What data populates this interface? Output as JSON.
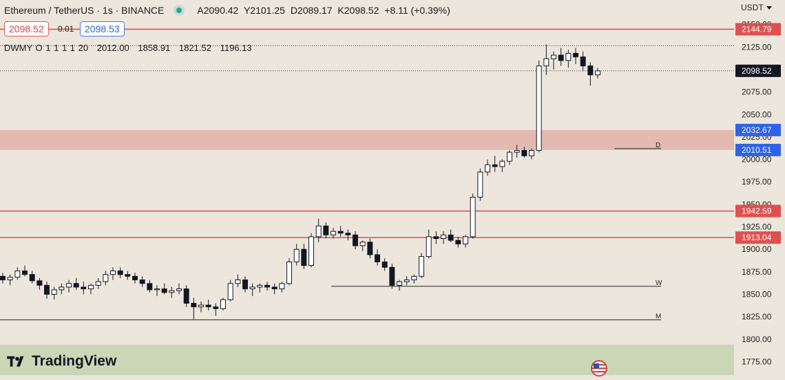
{
  "header": {
    "symbol": "Ethereum / TetherUS · 1s · BINANCE",
    "open": "A2090.42",
    "high": "Y2101.25",
    "low": "D2089.17",
    "close": "K2098.52",
    "change": "+8.11 (+0.39%)",
    "sell_price": "2098.52",
    "spread": "0.01",
    "buy_price": "2098.53",
    "currency": "USDT"
  },
  "indicator": {
    "name": "DWMY O 1 1 1 1 20",
    "v1": "2012.00",
    "v2": "1858.91",
    "v3": "1821.52",
    "v4": "1196.13"
  },
  "branding": {
    "logo_text": "TradingView"
  },
  "colors": {
    "up": "#ffffff",
    "down": "#131722",
    "hline": "#e05050",
    "supply_zone": "#e0b0aa",
    "demand_zone": "#c3d4b0",
    "background": "#ede6dc",
    "last_price": "#131722",
    "range_tag": "#2f62e8"
  },
  "chart_data": {
    "type": "candlestick",
    "yaxis": {
      "ticks": [
        "2150.00",
        "2125.00",
        "2100.00",
        "2075.00",
        "2050.00",
        "2025.00",
        "2000.00",
        "1975.00",
        "1950.00",
        "1925.00",
        "1900.00",
        "1875.00",
        "1850.00",
        "1825.00",
        "1800.00",
        "1775.00"
      ],
      "range": [
        1760,
        2162
      ]
    },
    "last_price": 2098.52,
    "price_labels": [
      {
        "value": 2144.79,
        "text": "2144.79",
        "kind": "red"
      },
      {
        "value": 2098.52,
        "text": "2098.52",
        "kind": "last"
      },
      {
        "value": 2032.67,
        "text": "2032.67",
        "kind": "blue"
      },
      {
        "value": 2010.51,
        "text": "2010.51",
        "kind": "blue"
      },
      {
        "value": 1942.59,
        "text": "1942.59",
        "kind": "red"
      },
      {
        "value": 1913.04,
        "text": "1913.04",
        "kind": "red"
      }
    ],
    "horizontal_lines": [
      2144.79,
      1942.59,
      1913.04
    ],
    "zones": [
      {
        "kind": "supply",
        "from": 2010.51,
        "to": 2032.67
      },
      {
        "kind": "demand",
        "from": 1760,
        "to": 1794
      }
    ],
    "level_lines": [
      {
        "label": "D",
        "value": 2012.0,
        "x_from": 0.705
      },
      {
        "label": "W",
        "value": 1858.91,
        "x_from": 0.38
      },
      {
        "label": "M",
        "value": 1821.52,
        "x_from": 0.0
      }
    ],
    "dotted_lines": [
      2126.5,
      2098.52
    ],
    "candles": [
      [
        1870,
        1874,
        1862,
        1866
      ],
      [
        1866,
        1872,
        1860,
        1869
      ],
      [
        1869,
        1880,
        1866,
        1876
      ],
      [
        1876,
        1882,
        1870,
        1872
      ],
      [
        1872,
        1876,
        1862,
        1865
      ],
      [
        1865,
        1868,
        1855,
        1860
      ],
      [
        1860,
        1864,
        1845,
        1850
      ],
      [
        1850,
        1858,
        1844,
        1855
      ],
      [
        1855,
        1862,
        1850,
        1858
      ],
      [
        1858,
        1866,
        1852,
        1862
      ],
      [
        1862,
        1868,
        1855,
        1858
      ],
      [
        1858,
        1864,
        1850,
        1856
      ],
      [
        1856,
        1862,
        1850,
        1860
      ],
      [
        1860,
        1868,
        1856,
        1864
      ],
      [
        1864,
        1876,
        1860,
        1872
      ],
      [
        1872,
        1880,
        1866,
        1876
      ],
      [
        1876,
        1880,
        1868,
        1872
      ],
      [
        1872,
        1876,
        1866,
        1870
      ],
      [
        1870,
        1874,
        1862,
        1866
      ],
      [
        1866,
        1870,
        1858,
        1862
      ],
      [
        1862,
        1866,
        1852,
        1855
      ],
      [
        1855,
        1860,
        1848,
        1856
      ],
      [
        1856,
        1862,
        1850,
        1852
      ],
      [
        1852,
        1858,
        1846,
        1854
      ],
      [
        1854,
        1862,
        1850,
        1856
      ],
      [
        1856,
        1860,
        1836,
        1840
      ],
      [
        1840,
        1846,
        1822,
        1836
      ],
      [
        1836,
        1842,
        1830,
        1838
      ],
      [
        1838,
        1844,
        1832,
        1836
      ],
      [
        1836,
        1840,
        1826,
        1834
      ],
      [
        1834,
        1846,
        1832,
        1844
      ],
      [
        1844,
        1866,
        1842,
        1862
      ],
      [
        1862,
        1872,
        1858,
        1866
      ],
      [
        1866,
        1870,
        1852,
        1856
      ],
      [
        1856,
        1862,
        1848,
        1858
      ],
      [
        1858,
        1862,
        1852,
        1860
      ],
      [
        1860,
        1864,
        1854,
        1858
      ],
      [
        1858,
        1862,
        1850,
        1856
      ],
      [
        1856,
        1864,
        1852,
        1862
      ],
      [
        1862,
        1890,
        1860,
        1886
      ],
      [
        1886,
        1906,
        1882,
        1900
      ],
      [
        1900,
        1906,
        1878,
        1882
      ],
      [
        1882,
        1918,
        1880,
        1914
      ],
      [
        1914,
        1934,
        1908,
        1926
      ],
      [
        1926,
        1930,
        1912,
        1916
      ],
      [
        1916,
        1924,
        1912,
        1920
      ],
      [
        1920,
        1926,
        1914,
        1918
      ],
      [
        1918,
        1922,
        1910,
        1916
      ],
      [
        1916,
        1920,
        1900,
        1904
      ],
      [
        1904,
        1910,
        1898,
        1908
      ],
      [
        1908,
        1912,
        1890,
        1894
      ],
      [
        1894,
        1900,
        1882,
        1886
      ],
      [
        1886,
        1890,
        1876,
        1880
      ],
      [
        1880,
        1884,
        1856,
        1860
      ],
      [
        1860,
        1866,
        1854,
        1864
      ],
      [
        1864,
        1870,
        1860,
        1866
      ],
      [
        1866,
        1872,
        1862,
        1870
      ],
      [
        1870,
        1896,
        1868,
        1892
      ],
      [
        1892,
        1922,
        1890,
        1914
      ],
      [
        1914,
        1920,
        1906,
        1912
      ],
      [
        1912,
        1920,
        1906,
        1916
      ],
      [
        1916,
        1922,
        1908,
        1910
      ],
      [
        1910,
        1914,
        1902,
        1906
      ],
      [
        1906,
        1916,
        1902,
        1914
      ],
      [
        1914,
        1962,
        1912,
        1958
      ],
      [
        1958,
        1990,
        1954,
        1986
      ],
      [
        1986,
        2000,
        1982,
        1994
      ],
      [
        1994,
        2004,
        1986,
        1992
      ],
      [
        1992,
        2000,
        1986,
        1998
      ],
      [
        1998,
        2010,
        1994,
        2008
      ],
      [
        2008,
        2016,
        2002,
        2010
      ],
      [
        2010,
        2014,
        2002,
        2004
      ],
      [
        2004,
        2012,
        2000,
        2010
      ],
      [
        2010,
        2110,
        2008,
        2104
      ],
      [
        2104,
        2128,
        2094,
        2112
      ],
      [
        2112,
        2120,
        2100,
        2116
      ],
      [
        2116,
        2124,
        2104,
        2110
      ],
      [
        2110,
        2122,
        2102,
        2118
      ],
      [
        2118,
        2124,
        2106,
        2114
      ],
      [
        2114,
        2120,
        2098,
        2104
      ],
      [
        2104,
        2108,
        2082,
        2094
      ],
      [
        2094,
        2102,
        2090,
        2098.52
      ]
    ],
    "x_range": [
      0,
      82
    ]
  }
}
